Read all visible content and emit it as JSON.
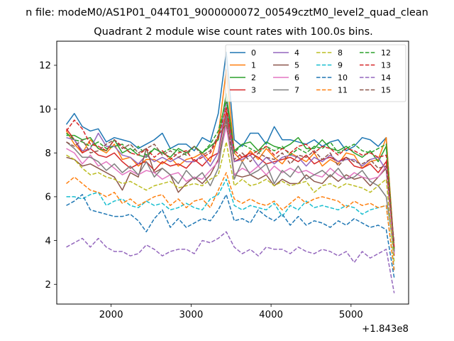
{
  "suptitle": "n file: modeM0/AS1P01_044T01_9000000072_00549cztM0_level2_quad_clean",
  "chart_data": {
    "type": "line",
    "title": "Quadrant 2 module wise count rates with 100.0s bins.",
    "xlabel": "",
    "ylabel": "",
    "x_offset_label": "+1.843e8",
    "xlim": [
      1320,
      5720
    ],
    "ylim": [
      1.1,
      13.1
    ],
    "xticks": [
      2000,
      3000,
      4000,
      5000
    ],
    "xtick_labels": [
      "2000",
      "3000",
      "4000",
      "5000"
    ],
    "yticks": [
      2,
      4,
      6,
      8,
      10,
      12
    ],
    "ytick_labels": [
      "2",
      "4",
      "6",
      "8",
      "10",
      "12"
    ],
    "grid": false,
    "legend": {
      "placement": "top-right",
      "columns": 4
    },
    "x": [
      1440,
      1540,
      1640,
      1740,
      1840,
      1940,
      2040,
      2140,
      2240,
      2340,
      2440,
      2540,
      2640,
      2740,
      2840,
      2940,
      3040,
      3140,
      3240,
      3340,
      3440,
      3540,
      3640,
      3740,
      3840,
      3940,
      4040,
      4140,
      4240,
      4340,
      4440,
      4540,
      4640,
      4740,
      4840,
      4940,
      5040,
      5140,
      5240,
      5340,
      5440,
      5540
    ],
    "series": [
      {
        "name": "0",
        "color": "#1f77b4",
        "dash": "solid",
        "values": [
          9.3,
          9.8,
          9.2,
          9.0,
          9.1,
          8.5,
          8.7,
          8.6,
          8.5,
          8.2,
          8.4,
          8.6,
          8.9,
          8.2,
          8.4,
          8.4,
          8.1,
          8.7,
          8.5,
          9.8,
          12.6,
          8.6,
          8.3,
          8.9,
          8.9,
          8.4,
          9.2,
          8.6,
          8.6,
          8.5,
          8.4,
          8.6,
          8.3,
          8.5,
          8.6,
          8.1,
          8.3,
          8.7,
          8.6,
          8.3,
          8.7,
          3.5
        ]
      },
      {
        "name": "1",
        "color": "#ff7f0e",
        "dash": "solid",
        "values": [
          9.0,
          8.4,
          8.0,
          8.6,
          8.2,
          8.0,
          8.4,
          7.7,
          7.8,
          7.4,
          7.7,
          7.7,
          7.5,
          7.8,
          7.4,
          7.7,
          7.8,
          8.0,
          7.6,
          8.8,
          11.8,
          8.0,
          7.6,
          8.1,
          7.7,
          8.2,
          7.8,
          7.5,
          8.0,
          7.8,
          7.6,
          8.0,
          7.4,
          7.7,
          7.5,
          8.0,
          7.9,
          7.3,
          7.6,
          7.7,
          8.7,
          3.6
        ]
      },
      {
        "name": "2",
        "color": "#2ca02c",
        "dash": "solid",
        "values": [
          8.8,
          8.8,
          8.6,
          8.7,
          8.2,
          8.1,
          8.6,
          8.0,
          8.2,
          7.9,
          7.8,
          8.2,
          8.0,
          7.8,
          8.2,
          8.0,
          8.3,
          8.0,
          8.3,
          8.6,
          10.7,
          8.1,
          8.4,
          8.5,
          8.1,
          8.5,
          8.3,
          8.2,
          8.4,
          8.7,
          8.2,
          8.2,
          8.6,
          8.2,
          8.1,
          8.3,
          8.0,
          7.8,
          8.1,
          7.6,
          8.3,
          3.4
        ]
      },
      {
        "name": "3",
        "color": "#d62728",
        "dash": "solid",
        "values": [
          9.1,
          8.6,
          8.0,
          8.2,
          7.9,
          7.8,
          8.0,
          7.6,
          7.3,
          7.5,
          7.6,
          7.2,
          7.6,
          7.4,
          7.5,
          7.3,
          7.7,
          7.4,
          7.8,
          8.0,
          9.9,
          7.6,
          7.8,
          8.0,
          7.8,
          7.5,
          7.6,
          7.7,
          7.8,
          7.6,
          7.9,
          7.5,
          7.7,
          7.8,
          7.6,
          7.8,
          7.4,
          7.3,
          7.5,
          7.1,
          7.6,
          3.3
        ]
      },
      {
        "name": "4",
        "color": "#9467bd",
        "dash": "solid",
        "values": [
          8.7,
          8.6,
          8.1,
          8.2,
          8.9,
          8.3,
          8.3,
          7.9,
          7.8,
          7.5,
          7.9,
          7.6,
          7.8,
          7.6,
          7.8,
          7.6,
          7.6,
          7.9,
          7.4,
          8.0,
          10.4,
          7.6,
          7.7,
          7.9,
          7.4,
          7.8,
          7.5,
          7.8,
          7.9,
          7.8,
          7.4,
          7.8,
          7.6,
          7.9,
          7.6,
          7.7,
          7.7,
          7.4,
          7.7,
          7.8,
          7.2,
          3.5
        ]
      },
      {
        "name": "5",
        "color": "#8c564b",
        "dash": "solid",
        "values": [
          7.8,
          7.7,
          7.4,
          7.5,
          7.3,
          7.1,
          6.9,
          6.3,
          7.1,
          6.9,
          8.2,
          7.1,
          7.3,
          7.0,
          6.2,
          6.6,
          6.9,
          6.6,
          7.0,
          7.7,
          9.5,
          7.0,
          6.9,
          7.0,
          6.8,
          7.0,
          6.5,
          6.8,
          6.6,
          6.6,
          7.0,
          6.7,
          6.6,
          7.0,
          6.7,
          7.0,
          6.8,
          6.9,
          6.5,
          6.9,
          7.3,
          3.6
        ]
      },
      {
        "name": "6",
        "color": "#e377c2",
        "dash": "solid",
        "values": [
          8.2,
          8.0,
          7.5,
          7.9,
          7.4,
          7.6,
          7.3,
          7.0,
          7.2,
          7.0,
          7.2,
          7.1,
          6.8,
          7.0,
          7.1,
          6.7,
          6.9,
          6.8,
          7.2,
          7.6,
          9.2,
          7.0,
          7.3,
          7.1,
          7.4,
          7.0,
          7.4,
          7.1,
          7.3,
          7.1,
          7.2,
          7.0,
          6.9,
          7.3,
          7.0,
          6.8,
          7.1,
          6.9,
          6.8,
          6.9,
          7.4,
          3.4
        ]
      },
      {
        "name": "7",
        "color": "#7f7f7f",
        "dash": "solid",
        "values": [
          8.5,
          8.2,
          7.8,
          7.8,
          7.6,
          7.2,
          7.5,
          7.1,
          7.4,
          7.0,
          7.6,
          6.9,
          7.3,
          7.0,
          6.6,
          7.2,
          6.8,
          7.1,
          6.5,
          7.3,
          9.7,
          6.8,
          7.6,
          7.0,
          7.2,
          7.5,
          6.6,
          7.2,
          6.9,
          7.4,
          6.8,
          7.0,
          7.2,
          6.9,
          7.3,
          6.8,
          6.9,
          7.2,
          6.7,
          6.5,
          6.0,
          3.5
        ]
      },
      {
        "name": "8",
        "color": "#bcbd22",
        "dash": "dashed",
        "values": [
          7.9,
          7.7,
          7.3,
          7.0,
          7.1,
          6.9,
          6.8,
          6.6,
          6.7,
          6.5,
          6.3,
          6.5,
          6.6,
          6.7,
          6.4,
          6.5,
          6.6,
          6.5,
          6.8,
          7.0,
          8.5,
          6.5,
          6.8,
          6.5,
          6.6,
          6.8,
          6.5,
          6.7,
          6.5,
          6.6,
          6.7,
          6.2,
          6.5,
          6.6,
          6.4,
          6.6,
          6.5,
          6.4,
          6.2,
          6.5,
          6.8,
          3.0
        ]
      },
      {
        "name": "9",
        "color": "#17becf",
        "dash": "dashed",
        "values": [
          6.0,
          6.0,
          5.9,
          6.1,
          6.2,
          5.6,
          5.8,
          5.9,
          5.6,
          5.5,
          5.8,
          5.6,
          5.7,
          5.4,
          5.5,
          5.7,
          5.5,
          5.4,
          5.9,
          6.1,
          6.8,
          5.6,
          5.4,
          5.6,
          5.5,
          5.4,
          5.7,
          5.1,
          5.6,
          5.4,
          5.8,
          5.5,
          5.6,
          5.5,
          5.4,
          5.6,
          5.5,
          5.2,
          5.4,
          5.5,
          5.6,
          2.7
        ]
      },
      {
        "name": "10",
        "color": "#1f77b4",
        "dash": "dashed",
        "values": [
          5.6,
          5.8,
          6.1,
          5.4,
          5.3,
          5.2,
          5.1,
          5.1,
          5.2,
          4.9,
          4.4,
          5.0,
          5.4,
          4.6,
          5.0,
          4.6,
          4.8,
          5.0,
          4.9,
          5.4,
          6.1,
          4.9,
          5.0,
          4.8,
          5.4,
          5.1,
          4.9,
          5.2,
          4.7,
          5.1,
          4.7,
          4.9,
          4.8,
          4.6,
          4.9,
          4.7,
          5.0,
          4.8,
          4.6,
          4.7,
          4.5,
          2.3
        ]
      },
      {
        "name": "11",
        "color": "#ff7f0e",
        "dash": "dashed",
        "values": [
          6.6,
          6.9,
          6.6,
          6.3,
          6.2,
          6.0,
          6.2,
          5.7,
          5.9,
          5.6,
          5.8,
          6.0,
          6.1,
          5.6,
          5.9,
          5.5,
          5.8,
          5.9,
          5.5,
          6.3,
          7.1,
          5.9,
          5.7,
          5.9,
          5.7,
          5.6,
          5.8,
          5.4,
          5.7,
          6.0,
          5.7,
          5.9,
          6.0,
          5.9,
          5.8,
          5.5,
          5.8,
          5.6,
          5.7,
          5.5,
          5.6,
          2.6
        ]
      },
      {
        "name": "12",
        "color": "#2ca02c",
        "dash": "dashed",
        "values": [
          8.9,
          8.6,
          8.5,
          8.3,
          8.5,
          8.2,
          8.3,
          8.4,
          8.0,
          8.3,
          7.9,
          8.2,
          8.0,
          8.2,
          8.1,
          7.9,
          8.3,
          8.0,
          8.4,
          9.0,
          10.4,
          8.0,
          8.4,
          8.2,
          8.0,
          8.3,
          8.1,
          8.3,
          7.9,
          8.2,
          8.0,
          8.3,
          8.2,
          8.5,
          8.0,
          8.2,
          8.4,
          8.1,
          8.0,
          8.2,
          8.4,
          3.6
        ]
      },
      {
        "name": "13",
        "color": "#d62728",
        "dash": "dashed",
        "values": [
          9.0,
          9.5,
          9.1,
          8.4,
          8.3,
          8.1,
          8.6,
          8.3,
          8.0,
          7.9,
          8.2,
          7.8,
          8.1,
          7.7,
          8.0,
          8.1,
          7.6,
          7.8,
          8.0,
          8.7,
          10.1,
          8.1,
          7.8,
          7.9,
          8.1,
          8.3,
          7.9,
          8.2,
          8.0,
          8.3,
          8.4,
          8.0,
          8.3,
          8.2,
          7.9,
          8.2,
          8.1,
          7.9,
          8.0,
          7.8,
          7.9,
          3.7
        ]
      },
      {
        "name": "14",
        "color": "#9467bd",
        "dash": "dashed",
        "values": [
          3.7,
          3.9,
          4.1,
          3.7,
          4.1,
          3.7,
          3.5,
          3.5,
          3.3,
          3.4,
          3.8,
          3.6,
          3.3,
          3.5,
          3.6,
          3.6,
          3.4,
          4.0,
          3.9,
          4.1,
          4.4,
          3.7,
          3.4,
          3.6,
          3.3,
          3.7,
          3.6,
          3.6,
          3.4,
          3.7,
          3.5,
          3.4,
          3.6,
          3.5,
          3.3,
          3.5,
          3.0,
          3.5,
          3.2,
          3.4,
          3.6,
          1.6
        ]
      },
      {
        "name": "15",
        "color": "#8c564b",
        "dash": "dashed",
        "values": [
          8.5,
          8.3,
          8.6,
          8.0,
          8.1,
          8.4,
          8.6,
          8.2,
          8.4,
          8.0,
          8.2,
          8.4,
          7.9,
          8.1,
          7.8,
          8.0,
          8.3,
          7.9,
          8.1,
          8.8,
          9.3,
          7.7,
          8.0,
          7.6,
          8.0,
          7.8,
          7.7,
          8.0,
          7.5,
          7.9,
          7.8,
          8.1,
          7.7,
          8.0,
          7.4,
          7.8,
          7.6,
          7.5,
          7.7,
          7.3,
          7.4,
          3.9
        ]
      }
    ]
  }
}
